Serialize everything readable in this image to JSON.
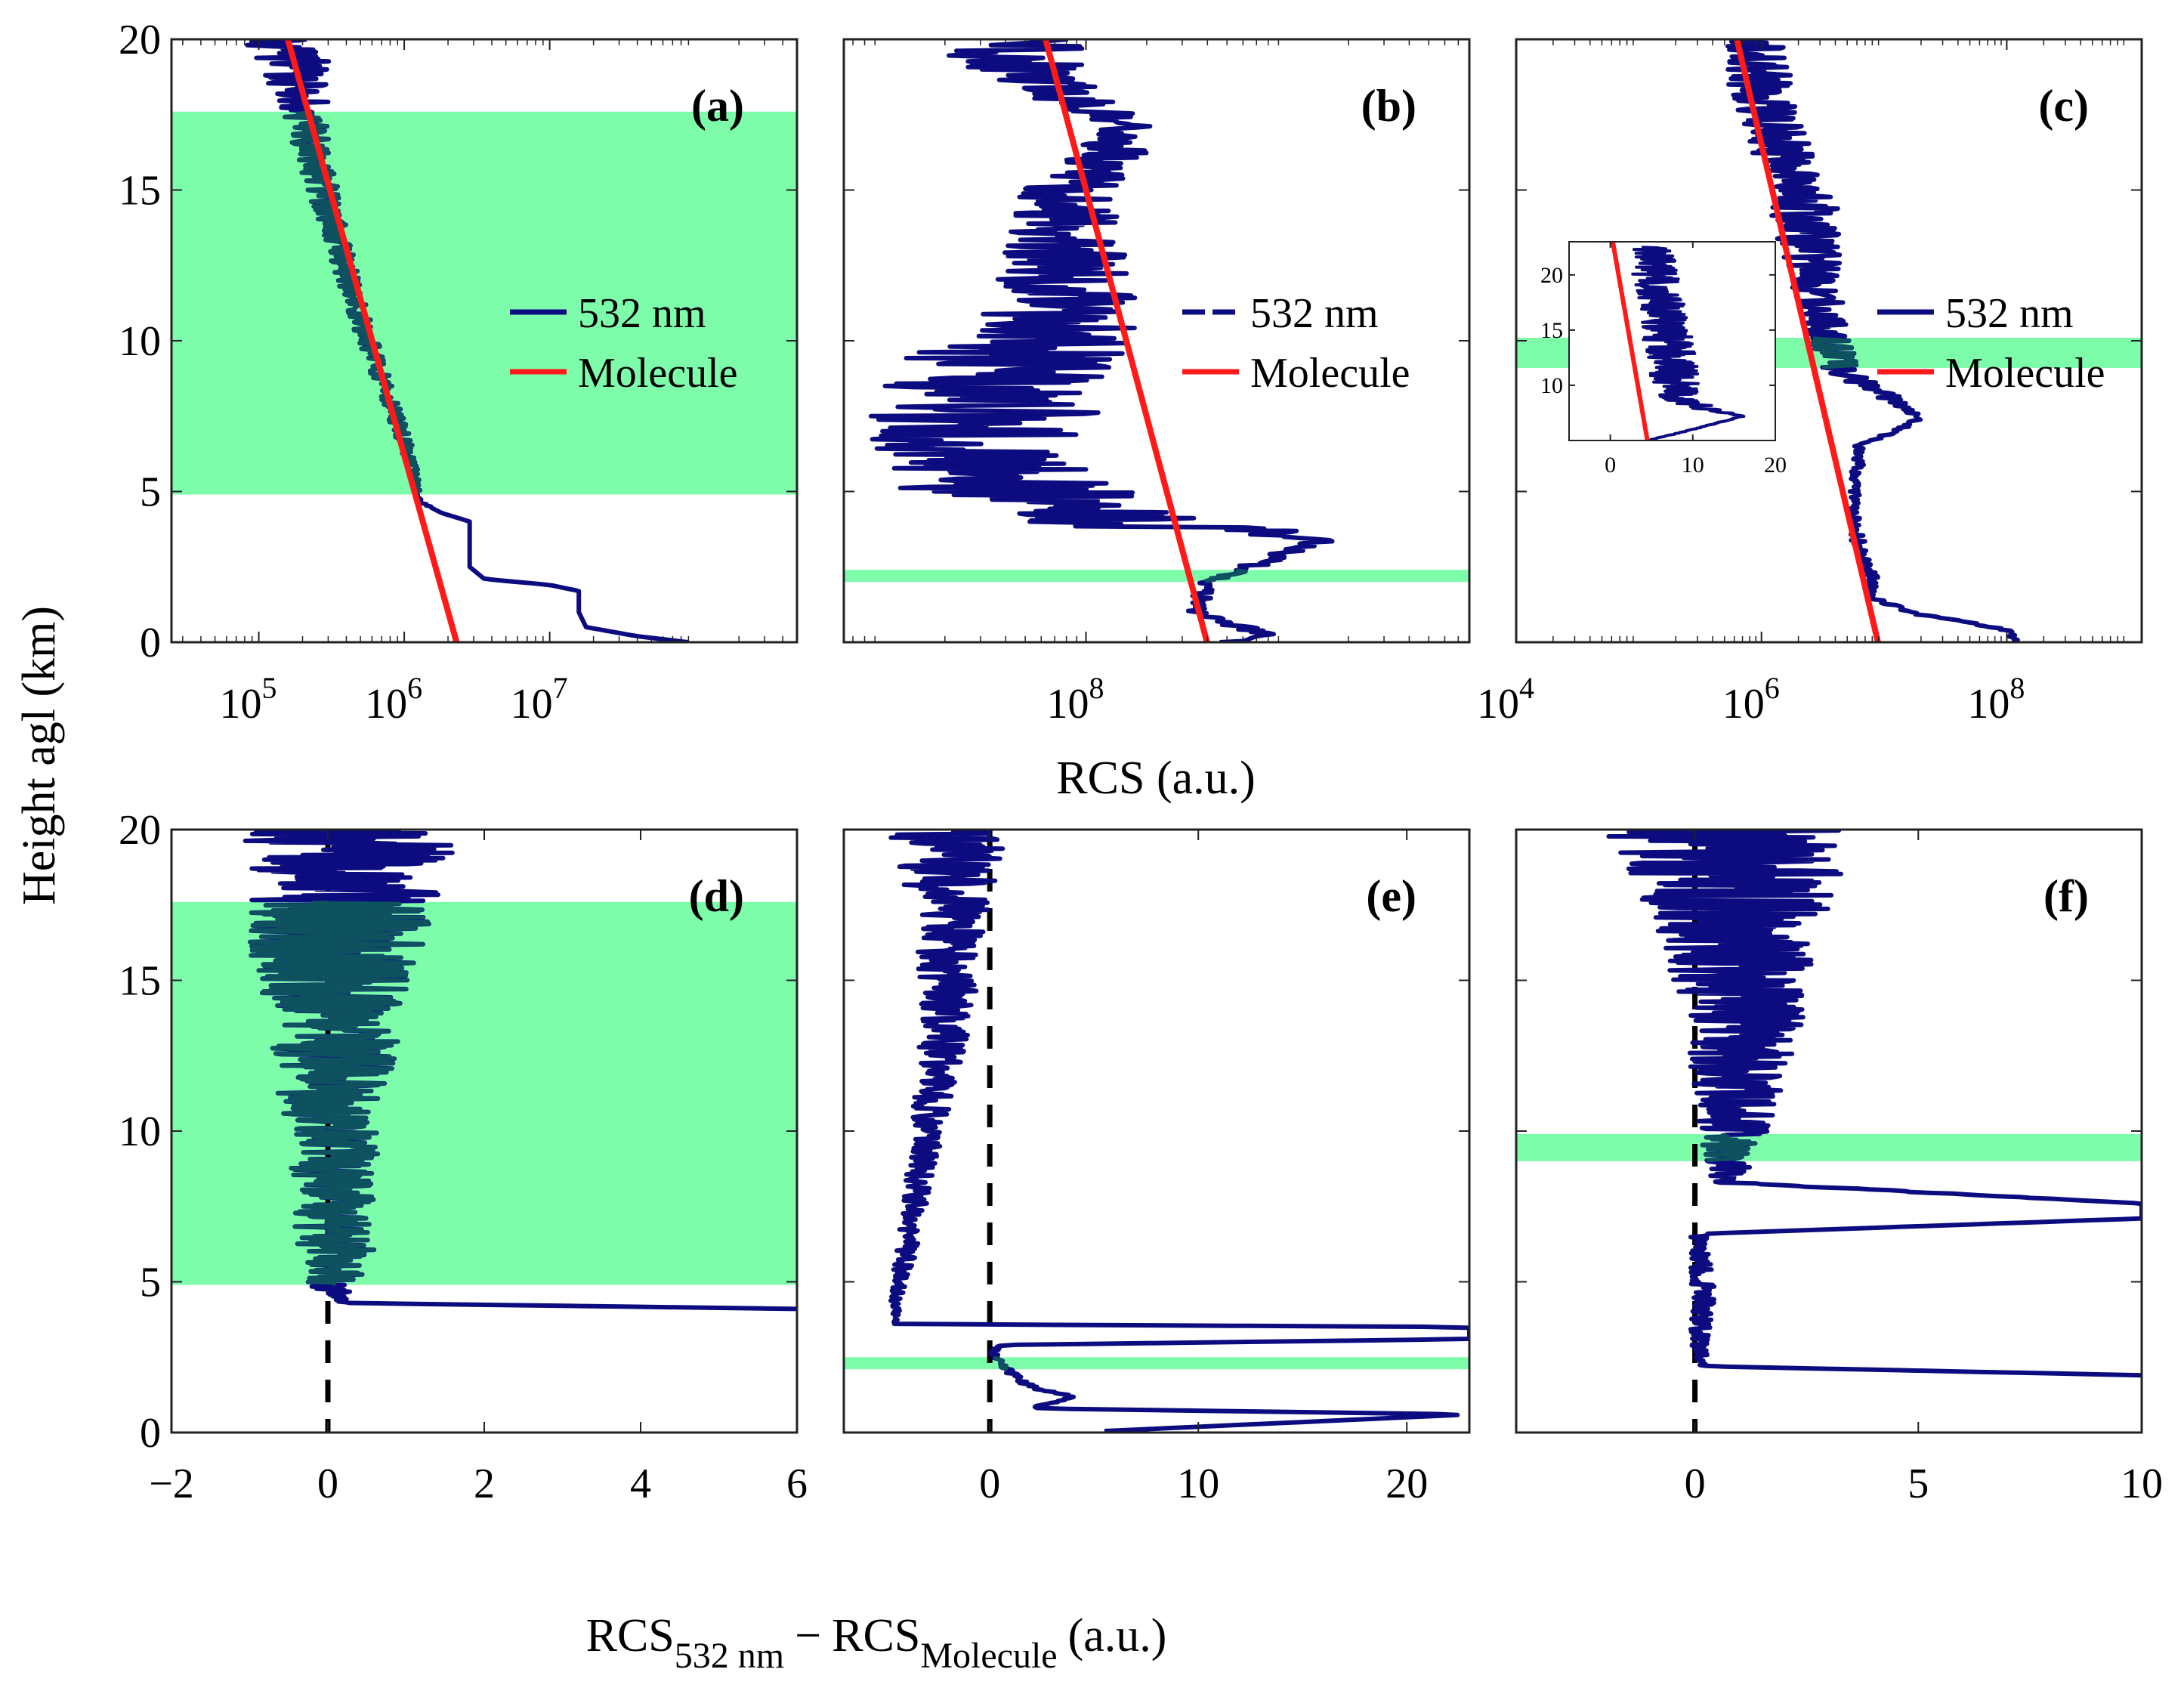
{
  "figure": {
    "ylabel": "Height agl (km)",
    "top_xlabel": "RCS (a.u.)",
    "bottom_xlabel": {
      "main": "RCS",
      "sub1": "532 nm",
      "minus": "−",
      "main2": "RCS",
      "sub2": "Molecule",
      "unit": "(a.u.)"
    }
  },
  "colors": {
    "signal": "#0c0c80",
    "molecule": "#ff1a1a",
    "band": "#7dfcaa",
    "band_overlap": "#0f5f5a",
    "zero_line": "#000000"
  },
  "chart_data": [
    {
      "id": "a",
      "label": "(a)",
      "type": "line",
      "xscale": "log",
      "xlim_exp": [
        4.4,
        8.7
      ],
      "ylim": [
        0,
        20
      ],
      "xticks": [
        {
          "v": 5,
          "base": "10",
          "exp": "5"
        },
        {
          "v": 6,
          "base": "10",
          "exp": "6"
        },
        {
          "v": 7,
          "base": "10",
          "exp": "7"
        }
      ],
      "yticks": [
        {
          "v": 0,
          "t": "0"
        },
        {
          "v": 5,
          "t": "5"
        },
        {
          "v": 10,
          "t": "10"
        },
        {
          "v": 15,
          "t": "15"
        },
        {
          "v": 20,
          "t": "20"
        }
      ],
      "band": [
        4.9,
        17.6
      ],
      "legend": [
        "532 nm",
        "Molecule"
      ],
      "molecule": {
        "x": [
          6.36,
          5.2
        ],
        "y": [
          0,
          20
        ]
      },
      "signal": {
        "x": [
          7.95,
          7.6,
          7.25,
          7.2,
          7.2,
          7.0,
          6.55,
          6.45,
          6.45,
          6.45,
          6.25,
          6.1,
          6.05,
          5.9,
          5.75,
          5.62,
          5.5,
          5.38,
          5.32,
          5.25,
          5.15
        ],
        "y": [
          0,
          0.2,
          0.5,
          1.0,
          1.7,
          1.9,
          2.1,
          2.5,
          3.2,
          4.0,
          4.3,
          4.7,
          6,
          8,
          10,
          12,
          14,
          16,
          17.5,
          18.7,
          20
        ],
        "noise": [
          0,
          0,
          0,
          0,
          0,
          0,
          0,
          0,
          0,
          0,
          0,
          0.02,
          0.05,
          0.06,
          0.07,
          0.08,
          0.1,
          0.12,
          0.15,
          0.25,
          0.35
        ]
      }
    },
    {
      "id": "b",
      "label": "(b)",
      "type": "line",
      "xscale": "log",
      "xlim_exp": [
        6.8,
        9.9
      ],
      "ylim": [
        0,
        20
      ],
      "xticks": [
        {
          "v": 8,
          "base": "10",
          "exp": "8"
        }
      ],
      "yticks": [
        {
          "v": 0,
          "t": ""
        },
        {
          "v": 5,
          "t": ""
        },
        {
          "v": 10,
          "t": ""
        },
        {
          "v": 15,
          "t": ""
        },
        {
          "v": 20,
          "t": ""
        }
      ],
      "band": [
        2.0,
        2.4
      ],
      "legend": [
        "532 nm",
        "Molecule"
      ],
      "molecule": {
        "x": [
          8.6,
          7.8
        ],
        "y": [
          0,
          20
        ]
      },
      "signal": {
        "x": [
          8.7,
          8.92,
          8.7,
          8.55,
          8.6,
          9.17,
          8.9,
          8.2,
          7.6,
          7.5,
          7.6,
          7.9,
          7.9,
          7.9,
          8.1,
          8.2,
          7.95,
          7.8,
          7.6,
          7.9
        ],
        "y": [
          0,
          0.3,
          0.6,
          1.0,
          2.0,
          3.4,
          3.6,
          3.9,
          5.2,
          7.1,
          9.0,
          11.1,
          14.2,
          15.0,
          16.0,
          17.0,
          18.0,
          18.7,
          19.5,
          20
        ],
        "noise": [
          0.05,
          0.1,
          0.05,
          0.05,
          0.05,
          0.1,
          0.3,
          0.5,
          0.6,
          0.6,
          0.6,
          0.4,
          0.25,
          0.25,
          0.2,
          0.15,
          0.2,
          0.25,
          0.35,
          0.3
        ]
      }
    },
    {
      "id": "c",
      "label": "(c)",
      "type": "line",
      "xscale": "log",
      "xlim_exp": [
        4.0,
        9.1
      ],
      "ylim": [
        0,
        20
      ],
      "xticks": [
        {
          "v": 4,
          "base": "10",
          "exp": "4"
        },
        {
          "v": 6,
          "base": "10",
          "exp": "6"
        },
        {
          "v": 8,
          "base": "10",
          "exp": "8"
        }
      ],
      "yticks": [
        {
          "v": 0,
          "t": ""
        },
        {
          "v": 5,
          "t": ""
        },
        {
          "v": 10,
          "t": ""
        },
        {
          "v": 15,
          "t": ""
        },
        {
          "v": 20,
          "t": ""
        }
      ],
      "band": [
        9.1,
        10.1
      ],
      "legend": [
        "532 nm",
        "Molecule"
      ],
      "molecule": {
        "x": [
          6.95,
          5.8
        ],
        "y": [
          0,
          20
        ]
      },
      "signal": {
        "x": [
          8.05,
          8.0,
          7.2,
          6.9,
          6.9,
          6.8,
          6.75,
          6.8,
          7.3,
          7.1,
          6.65,
          6.55,
          6.5,
          6.45,
          6.4,
          6.35,
          6.3,
          6.2,
          6.1,
          5.9
        ],
        "y": [
          0,
          0.4,
          1.0,
          1.5,
          2.2,
          3.0,
          4.5,
          6.5,
          7.4,
          8.0,
          9.0,
          10,
          11,
          12,
          13,
          14,
          15,
          16,
          17,
          20
        ],
        "noise": [
          0.05,
          0.05,
          0.05,
          0.05,
          0.05,
          0.06,
          0.05,
          0.05,
          0.05,
          0.1,
          0.15,
          0.18,
          0.2,
          0.22,
          0.25,
          0.3,
          0.3,
          0.25,
          0.25,
          0.3
        ]
      },
      "inset": {
        "xlim": [
          -5,
          20
        ],
        "ylim": [
          5,
          23
        ],
        "xticks": [
          {
            "v": 0,
            "t": "0"
          },
          {
            "v": 10,
            "t": "10"
          },
          {
            "v": 20,
            "t": "20"
          }
        ],
        "yticks": [
          {
            "v": 10,
            "t": "10"
          },
          {
            "v": 15,
            "t": "15"
          },
          {
            "v": 20,
            "t": "20"
          }
        ],
        "molecule": {
          "x": [
            4.5,
            0.3
          ],
          "y": [
            5,
            23
          ]
        },
        "signal": {
          "x": [
            4.5,
            10,
            16,
            12,
            9,
            8,
            7.5,
            7,
            6.5,
            6,
            5.5,
            5
          ],
          "y": [
            5,
            6,
            7.2,
            7.8,
            8.5,
            10,
            12,
            14,
            16,
            18,
            20,
            22.5
          ],
          "noise": [
            0.1,
            0.2,
            0.3,
            1.5,
            2.5,
            3,
            3,
            3,
            2.8,
            2.8,
            2.8,
            2.5
          ]
        }
      }
    },
    {
      "id": "d",
      "label": "(d)",
      "type": "line",
      "xscale": "linear",
      "xlim": [
        -2,
        6
      ],
      "ylim": [
        0,
        20
      ],
      "xticks": [
        {
          "v": -2,
          "t": "−2"
        },
        {
          "v": 0,
          "t": "0"
        },
        {
          "v": 2,
          "t": "2"
        },
        {
          "v": 4,
          "t": "4"
        },
        {
          "v": 6,
          "t": "6"
        }
      ],
      "yticks": [
        {
          "v": 0,
          "t": "0"
        },
        {
          "v": 5,
          "t": "5"
        },
        {
          "v": 10,
          "t": "10"
        },
        {
          "v": 15,
          "t": "15"
        },
        {
          "v": 20,
          "t": "20"
        }
      ],
      "band": [
        4.9,
        17.6
      ],
      "zero_line": 0,
      "signal": {
        "x": [
          6,
          0.2,
          0.05,
          0.1,
          0.1,
          0.05,
          0.1,
          0.05,
          0.1,
          0.3
        ],
        "y": [
          4.1,
          4.3,
          4.8,
          6,
          8,
          10,
          12,
          14,
          16,
          20
        ],
        "noise": [
          0,
          0.05,
          0.3,
          0.5,
          0.55,
          0.6,
          0.8,
          0.85,
          1.1,
          1.4
        ]
      }
    },
    {
      "id": "e",
      "label": "(e)",
      "type": "line",
      "xscale": "linear",
      "xlim": [
        -7,
        23
      ],
      "ylim": [
        0,
        20
      ],
      "xticks": [
        {
          "v": 0,
          "t": "0"
        },
        {
          "v": 10,
          "t": "10"
        },
        {
          "v": 20,
          "t": "20"
        }
      ],
      "yticks": [
        {
          "v": 0,
          "t": ""
        },
        {
          "v": 5,
          "t": ""
        },
        {
          "v": 10,
          "t": ""
        },
        {
          "v": 15,
          "t": ""
        },
        {
          "v": 20,
          "t": ""
        }
      ],
      "band": [
        2.1,
        2.5
      ],
      "zero_line": 0,
      "signal": {
        "x": [
          5.5,
          23,
          2,
          4,
          2,
          1,
          0.2,
          0.3,
          23,
          23,
          -4.5,
          -4.5,
          -4,
          -3.5,
          -3,
          -2.5,
          -2,
          -2,
          -1.5,
          -2,
          -2
        ],
        "y": [
          0.05,
          0.6,
          0.8,
          1.2,
          1.5,
          2.0,
          2.5,
          2.9,
          3.1,
          3.5,
          3.6,
          4.5,
          6,
          8,
          10,
          12,
          14,
          16,
          17,
          18.5,
          20
        ],
        "noise": [
          0,
          0,
          0.2,
          0.2,
          0.3,
          0.3,
          0.2,
          0.2,
          0,
          0,
          0.1,
          0.3,
          0.5,
          0.6,
          0.8,
          1.0,
          1.3,
          1.5,
          1.6,
          2.5,
          2.8
        ]
      }
    },
    {
      "id": "f",
      "label": "(f)",
      "type": "line",
      "xscale": "linear",
      "xlim": [
        -4,
        10
      ],
      "ylim": [
        0,
        20
      ],
      "xticks": [
        {
          "v": 0,
          "t": "0"
        },
        {
          "v": 5,
          "t": "5"
        },
        {
          "v": 10,
          "t": "10"
        }
      ],
      "yticks": [
        {
          "v": 0,
          "t": ""
        },
        {
          "v": 5,
          "t": ""
        },
        {
          "v": 10,
          "t": ""
        },
        {
          "v": 15,
          "t": ""
        },
        {
          "v": 20,
          "t": ""
        }
      ],
      "band": [
        9.0,
        9.9
      ],
      "zero_line": 0,
      "signal": {
        "x": [
          10,
          0.2,
          0.1,
          0.2,
          0.1,
          0.1,
          0.3,
          10,
          10,
          0.7,
          0.8,
          0.9,
          1.0,
          1.1,
          1.0,
          0.9,
          0.8
        ],
        "y": [
          1.9,
          2.2,
          3.0,
          4.5,
          6.0,
          6.5,
          6.6,
          7.1,
          7.6,
          8.3,
          9.0,
          10,
          12,
          14,
          16,
          18,
          20
        ],
        "noise": [
          0,
          0.1,
          0.2,
          0.3,
          0.2,
          0.2,
          0,
          0,
          0,
          0.3,
          0.6,
          0.8,
          1.1,
          1.4,
          1.7,
          2.3,
          2.8
        ]
      }
    }
  ]
}
